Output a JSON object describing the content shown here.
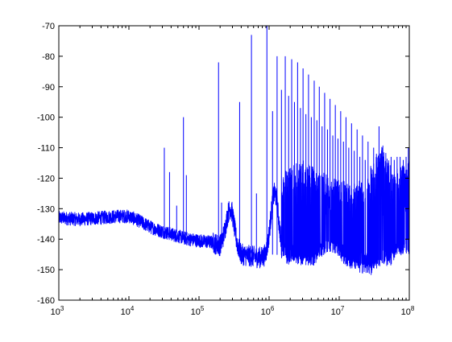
{
  "chart_data": {
    "type": "line",
    "xscale": "log",
    "xlim": [
      1000,
      100000000
    ],
    "ylim": [
      -160,
      -70
    ],
    "grid": false,
    "y_ticks": [
      -70,
      -80,
      -90,
      -100,
      -110,
      -120,
      -130,
      -140,
      -150,
      -160
    ],
    "y_tick_labels": [
      "-70",
      "-80",
      "-90",
      "-100",
      "-110",
      "-120",
      "-130",
      "-140",
      "-150",
      "-160"
    ],
    "x_ticks": [
      {
        "value": 1000,
        "base": "10",
        "exp": "3"
      },
      {
        "value": 10000,
        "base": "10",
        "exp": "4"
      },
      {
        "value": 100000,
        "base": "10",
        "exp": "5"
      },
      {
        "value": 1000000,
        "base": "10",
        "exp": "6"
      },
      {
        "value": 10000000,
        "base": "10",
        "exp": "7"
      },
      {
        "value": 100000000,
        "base": "10",
        "exp": "8"
      }
    ],
    "line_color": "#0000ff",
    "noise_floor": [
      [
        1000,
        -133
      ],
      [
        2000,
        -133.5
      ],
      [
        4000,
        -133
      ],
      [
        7000,
        -132.5
      ],
      [
        10000,
        -132.5
      ],
      [
        14000,
        -134
      ],
      [
        20000,
        -136
      ],
      [
        30000,
        -137.5
      ],
      [
        50000,
        -139
      ],
      [
        70000,
        -140
      ],
      [
        100000,
        -140.5
      ],
      [
        150000,
        -141
      ],
      [
        200000,
        -142
      ],
      [
        260000,
        -136
      ],
      [
        320000,
        -140
      ],
      [
        400000,
        -145
      ],
      [
        700000,
        -146
      ],
      [
        1000000,
        -146
      ],
      [
        3000000,
        -146.5
      ],
      [
        5000000,
        -147
      ],
      [
        7000000,
        -145
      ],
      [
        10000000,
        -146
      ],
      [
        20000000,
        -149
      ],
      [
        30000000,
        -150
      ],
      [
        40000000,
        -149
      ],
      [
        60000000,
        -146
      ],
      [
        100000000,
        -145
      ]
    ],
    "bursts": [
      {
        "x": 280000,
        "peak": -130,
        "width": 0.06
      },
      {
        "x": 1200000,
        "peak": -125,
        "width": 0.08
      },
      {
        "x": 7000000,
        "peak": -128,
        "width": 0.1
      },
      {
        "x": 38000000,
        "peak": -113,
        "width": 0.05
      },
      {
        "x": 80000000,
        "peak": -117,
        "width": 0.06
      }
    ],
    "band_envelope": [
      [
        1500000,
        -122
      ],
      [
        3000000,
        -118
      ],
      [
        5000000,
        -121
      ],
      [
        8000000,
        -124
      ],
      [
        15000000,
        -125
      ],
      [
        25000000,
        -124
      ],
      [
        40000000,
        -112
      ],
      [
        60000000,
        -122
      ],
      [
        100000000,
        -116
      ]
    ],
    "spurs": [
      {
        "x": 32000,
        "y": -110
      },
      {
        "x": 38000,
        "y": -118
      },
      {
        "x": 48000,
        "y": -129
      },
      {
        "x": 60000,
        "y": -100
      },
      {
        "x": 66000,
        "y": -119
      },
      {
        "x": 190000,
        "y": -82
      },
      {
        "x": 210000,
        "y": -128
      },
      {
        "x": 380000,
        "y": -95
      },
      {
        "x": 560000,
        "y": -73
      },
      {
        "x": 660000,
        "y": -125
      },
      {
        "x": 930000,
        "y": -70
      },
      {
        "x": 1120000,
        "y": -98
      },
      {
        "x": 1300000,
        "y": -80
      },
      {
        "x": 1500000,
        "y": -91
      },
      {
        "x": 1700000,
        "y": -80
      },
      {
        "x": 1900000,
        "y": -93
      },
      {
        "x": 2100000,
        "y": -81
      },
      {
        "x": 2300000,
        "y": -95
      },
      {
        "x": 2550000,
        "y": -82
      },
      {
        "x": 2800000,
        "y": -97
      },
      {
        "x": 3050000,
        "y": -84
      },
      {
        "x": 3350000,
        "y": -99
      },
      {
        "x": 3650000,
        "y": -86
      },
      {
        "x": 4000000,
        "y": -100
      },
      {
        "x": 4400000,
        "y": -88
      },
      {
        "x": 4800000,
        "y": -101
      },
      {
        "x": 5200000,
        "y": -90
      },
      {
        "x": 5700000,
        "y": -103
      },
      {
        "x": 6200000,
        "y": -92
      },
      {
        "x": 6800000,
        "y": -104
      },
      {
        "x": 7400000,
        "y": -94
      },
      {
        "x": 8100000,
        "y": -106
      },
      {
        "x": 8800000,
        "y": -96
      },
      {
        "x": 9600000,
        "y": -107
      },
      {
        "x": 10500000,
        "y": -98
      },
      {
        "x": 11500000,
        "y": -108
      },
      {
        "x": 12500000,
        "y": -100
      },
      {
        "x": 13700000,
        "y": -110
      },
      {
        "x": 15000000,
        "y": -102
      },
      {
        "x": 16400000,
        "y": -111
      },
      {
        "x": 18000000,
        "y": -104
      },
      {
        "x": 19700000,
        "y": -113
      },
      {
        "x": 21500000,
        "y": -106
      },
      {
        "x": 23500000,
        "y": -114
      },
      {
        "x": 25800000,
        "y": -108
      },
      {
        "x": 28200000,
        "y": -116
      },
      {
        "x": 31000000,
        "y": -110
      },
      {
        "x": 34000000,
        "y": -112
      },
      {
        "x": 37000000,
        "y": -103
      },
      {
        "x": 41000000,
        "y": -110
      },
      {
        "x": 45000000,
        "y": -117
      },
      {
        "x": 50000000,
        "y": -115
      },
      {
        "x": 55000000,
        "y": -113
      },
      {
        "x": 61000000,
        "y": -114
      },
      {
        "x": 67000000,
        "y": -113
      },
      {
        "x": 74000000,
        "y": -113
      },
      {
        "x": 82000000,
        "y": -114
      },
      {
        "x": 90000000,
        "y": -113
      },
      {
        "x": 97000000,
        "y": -110
      }
    ]
  }
}
